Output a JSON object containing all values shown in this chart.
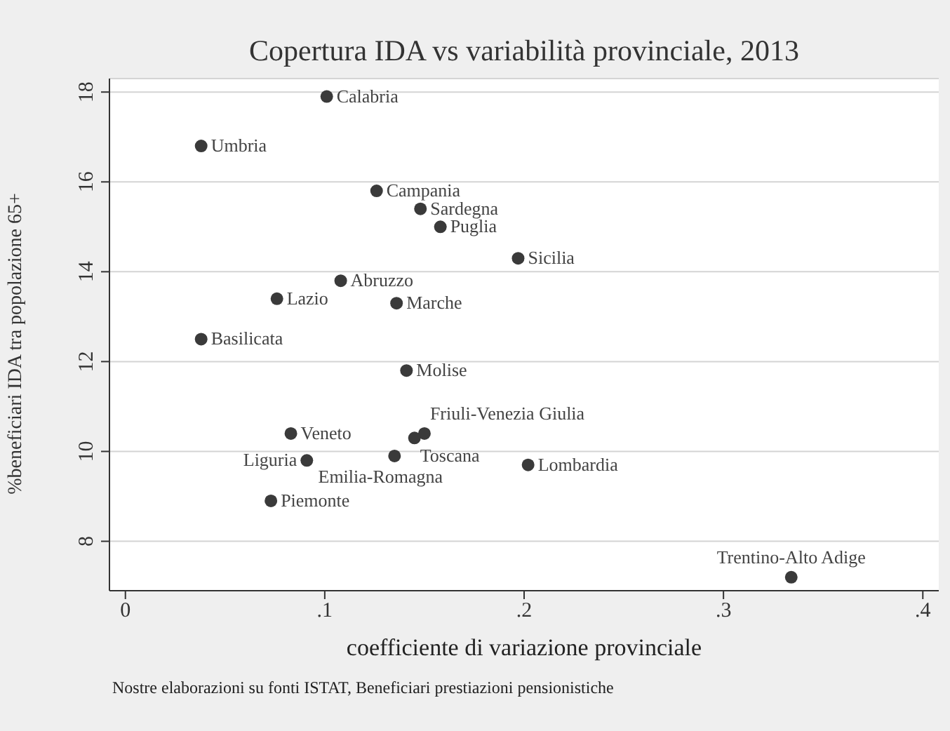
{
  "chart_data": {
    "type": "scatter",
    "title": "Copertura IDA vs variabilità provinciale, 2013",
    "xlabel": "coefficiente di variazione provinciale",
    "ylabel": "%beneficiari IDA tra popolazione 65+",
    "x": [
      0.101,
      0.038,
      0.126,
      0.148,
      0.158,
      0.197,
      0.108,
      0.076,
      0.136,
      0.038,
      0.141,
      0.15,
      0.145,
      0.083,
      0.091,
      0.135,
      0.073,
      0.202,
      0.334
    ],
    "series": [
      {
        "color": "#3a3a3a",
        "values": [
          17.9,
          16.8,
          15.8,
          15.4,
          15.0,
          14.3,
          13.8,
          13.4,
          13.3,
          12.5,
          11.8,
          10.4,
          10.3,
          10.4,
          9.8,
          9.9,
          8.9,
          9.7,
          7.2
        ]
      }
    ],
    "xlim": [
      -0.008,
      0.408
    ],
    "xticks": [
      0,
      {
        "value": 0.1,
        "label": ".1"
      },
      {
        "value": 0.2,
        "label": ".2"
      },
      {
        "value": 0.3,
        "label": ".3"
      },
      {
        "value": 0.4,
        "label": ".4"
      }
    ],
    "ylim": [
      6.9,
      18.3
    ],
    "yticks": [
      8,
      10,
      12,
      14,
      16,
      18
    ],
    "grid": "y",
    "marker": "circle",
    "legend": false,
    "annotations": [
      {
        "text": "Calabria",
        "x": 0.101,
        "y": 17.9
      },
      {
        "text": "Umbria",
        "x": 0.038,
        "y": 16.8
      },
      {
        "text": "Campania",
        "x": 0.126,
        "y": 15.8
      },
      {
        "text": "Sardegna",
        "x": 0.148,
        "y": 15.4
      },
      {
        "text": "Puglia",
        "x": 0.158,
        "y": 15.0
      },
      {
        "text": "Sicilia",
        "x": 0.197,
        "y": 14.3
      },
      {
        "text": "Abruzzo",
        "x": 0.108,
        "y": 13.8
      },
      {
        "text": "Lazio",
        "x": 0.076,
        "y": 13.4
      },
      {
        "text": "Marche",
        "x": 0.136,
        "y": 13.3
      },
      {
        "text": "Basilicata",
        "x": 0.038,
        "y": 12.5
      },
      {
        "text": "Molise",
        "x": 0.141,
        "y": 11.8
      },
      {
        "text": "Friuli-Venezia Giulia",
        "x": 0.15,
        "y": 10.4
      },
      {
        "text": "Toscana",
        "x": 0.145,
        "y": 10.3
      },
      {
        "text": "Veneto",
        "x": 0.083,
        "y": 10.4
      },
      {
        "text": "Liguria",
        "x": 0.091,
        "y": 9.8
      },
      {
        "text": "Emilia-Romagna",
        "x": 0.135,
        "y": 9.9
      },
      {
        "text": "Piemonte",
        "x": 0.073,
        "y": 8.9
      },
      {
        "text": "Lombardia",
        "x": 0.202,
        "y": 9.7
      },
      {
        "text": "Trentino-Alto Adige",
        "x": 0.334,
        "y": 7.2
      },
      "Nostre elaborazioni su fonti ISTAT, Beneficiari prestiazioni pensionistiche"
    ]
  }
}
